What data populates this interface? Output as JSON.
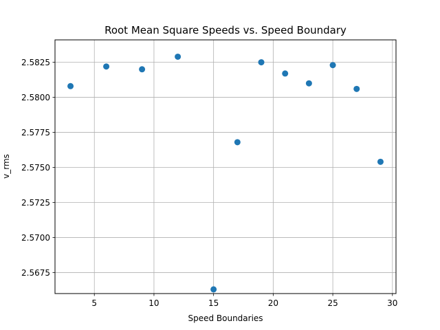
{
  "chart_data": {
    "type": "scatter",
    "title": "Root Mean Square Speeds vs. Speed Boundary",
    "xlabel": "Speed Boundaries",
    "ylabel": "v_rms",
    "xlim": [
      1.7,
      30.3
    ],
    "ylim": [
      2.566,
      2.5841
    ],
    "x_ticks": [
      5,
      10,
      15,
      20,
      25,
      30
    ],
    "y_ticks": [
      2.5675,
      2.57,
      2.5725,
      2.575,
      2.5775,
      2.58,
      2.5825
    ],
    "x_tick_labels": [
      "5",
      "10",
      "15",
      "20",
      "25",
      "30"
    ],
    "y_tick_labels": [
      "2.5675",
      "2.5700",
      "2.5725",
      "2.5750",
      "2.5775",
      "2.5800",
      "2.5825"
    ],
    "grid": true,
    "marker_color": "#1f77b4",
    "points": [
      {
        "x": 3,
        "y": 2.5808
      },
      {
        "x": 6,
        "y": 2.5822
      },
      {
        "x": 9,
        "y": 2.582
      },
      {
        "x": 12,
        "y": 2.5829
      },
      {
        "x": 15,
        "y": 2.5663
      },
      {
        "x": 17,
        "y": 2.5768
      },
      {
        "x": 19,
        "y": 2.5825
      },
      {
        "x": 21,
        "y": 2.5817
      },
      {
        "x": 23,
        "y": 2.581
      },
      {
        "x": 25,
        "y": 2.5823
      },
      {
        "x": 27,
        "y": 2.5806
      },
      {
        "x": 29,
        "y": 2.5754
      }
    ]
  }
}
